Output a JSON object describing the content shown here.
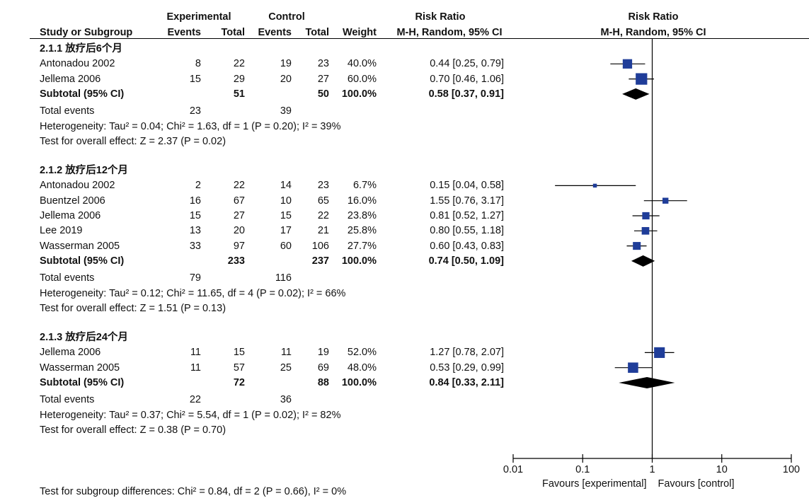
{
  "header": {
    "experimental": "Experimental",
    "control": "Control",
    "rr_text_title": "Risk Ratio",
    "rr_plot_title": "Risk Ratio",
    "study_col": "Study or Subgroup",
    "events_exp": "Events",
    "total_exp": "Total",
    "events_ctl": "Events",
    "total_ctl": "Total",
    "weight": "Weight",
    "method_text": "M-H, Random, 95% CI",
    "method_plot": "M-H, Random, 95% CI"
  },
  "groups": [
    {
      "title": "2.1.1 放疗后6个月",
      "studies": [
        {
          "name": "Antonadou 2002",
          "e_ev": "8",
          "e_tot": "22",
          "c_ev": "19",
          "c_tot": "23",
          "weight": "40.0%",
          "ci_text": "0.44 [0.25, 0.79]"
        },
        {
          "name": "Jellema 2006",
          "e_ev": "15",
          "e_tot": "29",
          "c_ev": "20",
          "c_tot": "27",
          "weight": "60.0%",
          "ci_text": "0.70 [0.46, 1.06]"
        }
      ],
      "subtotal": {
        "label": "Subtotal (95% CI)",
        "e_tot": "51",
        "c_tot": "50",
        "weight": "100.0%",
        "ci_text": "0.58 [0.37, 0.91]"
      },
      "total_events": {
        "label": "Total events",
        "e": "23",
        "c": "39"
      },
      "heterogeneity": "Heterogeneity: Tau² = 0.04; Chi² = 1.63, df = 1 (P = 0.20); I² = 39%",
      "overall": "Test for overall effect: Z = 2.37 (P = 0.02)"
    },
    {
      "title": "2.1.2 放疗后12个月",
      "studies": [
        {
          "name": "Antonadou 2002",
          "e_ev": "2",
          "e_tot": "22",
          "c_ev": "14",
          "c_tot": "23",
          "weight": "6.7%",
          "ci_text": "0.15 [0.04, 0.58]"
        },
        {
          "name": "Buentzel 2006",
          "e_ev": "16",
          "e_tot": "67",
          "c_ev": "10",
          "c_tot": "65",
          "weight": "16.0%",
          "ci_text": "1.55 [0.76, 3.17]"
        },
        {
          "name": "Jellema 2006",
          "e_ev": "15",
          "e_tot": "27",
          "c_ev": "15",
          "c_tot": "22",
          "weight": "23.8%",
          "ci_text": "0.81 [0.52, 1.27]"
        },
        {
          "name": "Lee 2019",
          "e_ev": "13",
          "e_tot": "20",
          "c_ev": "17",
          "c_tot": "21",
          "weight": "25.8%",
          "ci_text": "0.80 [0.55, 1.18]"
        },
        {
          "name": "Wasserman 2005",
          "e_ev": "33",
          "e_tot": "97",
          "c_ev": "60",
          "c_tot": "106",
          "weight": "27.7%",
          "ci_text": "0.60 [0.43, 0.83]"
        }
      ],
      "subtotal": {
        "label": "Subtotal (95% CI)",
        "e_tot": "233",
        "c_tot": "237",
        "weight": "100.0%",
        "ci_text": "0.74 [0.50, 1.09]"
      },
      "total_events": {
        "label": "Total events",
        "e": "79",
        "c": "116"
      },
      "heterogeneity": "Heterogeneity: Tau² = 0.12; Chi² = 11.65, df = 4 (P = 0.02); I² = 66%",
      "overall": "Test for overall effect: Z = 1.51 (P = 0.13)"
    },
    {
      "title": "2.1.3 放疗后24个月",
      "studies": [
        {
          "name": "Jellema 2006",
          "e_ev": "11",
          "e_tot": "15",
          "c_ev": "11",
          "c_tot": "19",
          "weight": "52.0%",
          "ci_text": "1.27 [0.78, 2.07]"
        },
        {
          "name": "Wasserman 2005",
          "e_ev": "11",
          "e_tot": "57",
          "c_ev": "25",
          "c_tot": "69",
          "weight": "48.0%",
          "ci_text": "0.53 [0.29, 0.99]"
        }
      ],
      "subtotal": {
        "label": "Subtotal (95% CI)",
        "e_tot": "72",
        "c_tot": "88",
        "weight": "100.0%",
        "ci_text": "0.84 [0.33, 2.11]"
      },
      "total_events": {
        "label": "Total events",
        "e": "22",
        "c": "36"
      },
      "heterogeneity": "Heterogeneity: Tau² = 0.37; Chi² = 5.54, df = 1 (P = 0.02); I² = 82%",
      "overall": "Test for overall effect: Z = 0.38 (P = 0.70)"
    }
  ],
  "footer": {
    "subgroup_test": "Test for subgroup differences: Chi² = 0.84, df = 2 (P = 0.66), I² = 0%"
  },
  "axis": {
    "ticks": [
      "0.01",
      "0.1",
      "1",
      "10",
      "100"
    ],
    "favours_left": "Favours [experimental]",
    "favours_right": "Favours [control]"
  },
  "colors": {
    "study_marker": "#1f3d99",
    "diamond": "#000000",
    "line": "#000000"
  },
  "chart_data": {
    "type": "forest",
    "scale": "log",
    "xlim": [
      0.01,
      100
    ],
    "null_line": 1,
    "xlabel_left": "Favours [experimental]",
    "xlabel_right": "Favours [control]",
    "groups": [
      {
        "name": "2.1.1 放疗后6个月",
        "studies": [
          {
            "name": "Antonadou 2002",
            "rr": 0.44,
            "lo": 0.25,
            "hi": 0.79,
            "weight": 40.0
          },
          {
            "name": "Jellema 2006",
            "rr": 0.7,
            "lo": 0.46,
            "hi": 1.06,
            "weight": 60.0
          }
        ],
        "subtotal": {
          "rr": 0.58,
          "lo": 0.37,
          "hi": 0.91
        }
      },
      {
        "name": "2.1.2 放疗后12个月",
        "studies": [
          {
            "name": "Antonadou 2002",
            "rr": 0.15,
            "lo": 0.04,
            "hi": 0.58,
            "weight": 6.7
          },
          {
            "name": "Buentzel 2006",
            "rr": 1.55,
            "lo": 0.76,
            "hi": 3.17,
            "weight": 16.0
          },
          {
            "name": "Jellema 2006",
            "rr": 0.81,
            "lo": 0.52,
            "hi": 1.27,
            "weight": 23.8
          },
          {
            "name": "Lee 2019",
            "rr": 0.8,
            "lo": 0.55,
            "hi": 1.18,
            "weight": 25.8
          },
          {
            "name": "Wasserman 2005",
            "rr": 0.6,
            "lo": 0.43,
            "hi": 0.83,
            "weight": 27.7
          }
        ],
        "subtotal": {
          "rr": 0.74,
          "lo": 0.5,
          "hi": 1.09
        }
      },
      {
        "name": "2.1.3 放疗后24个月",
        "studies": [
          {
            "name": "Jellema 2006",
            "rr": 1.27,
            "lo": 0.78,
            "hi": 2.07,
            "weight": 52.0
          },
          {
            "name": "Wasserman 2005",
            "rr": 0.53,
            "lo": 0.29,
            "hi": 0.99,
            "weight": 48.0
          }
        ],
        "subtotal": {
          "rr": 0.84,
          "lo": 0.33,
          "hi": 2.11
        }
      }
    ]
  }
}
